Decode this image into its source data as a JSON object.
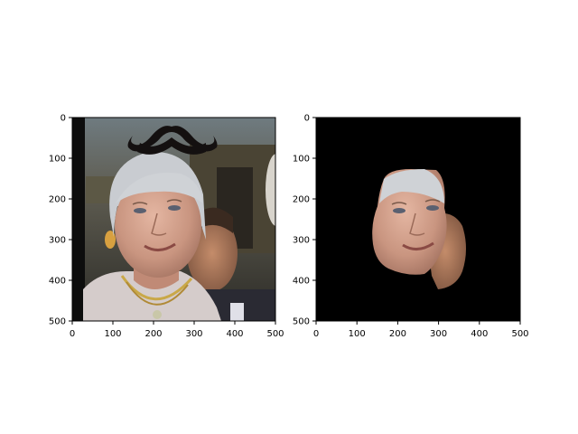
{
  "figure": {
    "panels": [
      {
        "name": "left-panel",
        "xlim": [
          0,
          500
        ],
        "ylim": [
          500,
          0
        ],
        "xticks": [
          "0",
          "100",
          "200",
          "300",
          "400",
          "500"
        ],
        "yticks": [
          "0",
          "100",
          "200",
          "300",
          "400",
          "500"
        ],
        "image": "photo of an older woman with silver hair and a drawn black mustache placed above her head, crowd in background"
      },
      {
        "name": "right-panel",
        "xlim": [
          0,
          500
        ],
        "ylim": [
          500,
          0
        ],
        "xticks": [
          "0",
          "100",
          "200",
          "300",
          "400",
          "500"
        ],
        "yticks": [
          "0",
          "100",
          "200",
          "300",
          "400",
          "500"
        ],
        "image": "segmented face regions on black background"
      }
    ]
  },
  "colors": {
    "background": "#ffffff",
    "axis": "#000000",
    "mask_bg": "#000000",
    "skin": "#c89a86",
    "hair": "#cfcfd4",
    "mustache": "#141010"
  }
}
